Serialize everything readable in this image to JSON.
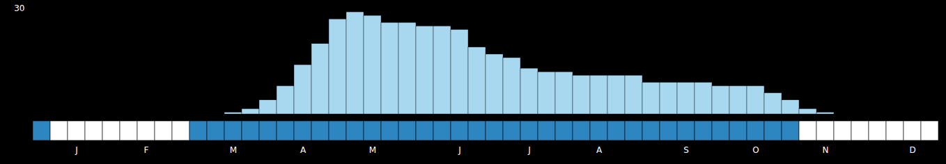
{
  "chart_data": [
    {
      "type": "bar",
      "categories": [
        null,
        null,
        "J",
        null,
        null,
        null,
        "F",
        null,
        null,
        null,
        null,
        "M",
        null,
        null,
        null,
        "A",
        null,
        null,
        null,
        "M",
        null,
        null,
        null,
        null,
        "J",
        null,
        null,
        null,
        "J",
        null,
        null,
        null,
        "A",
        null,
        null,
        null,
        null,
        "S",
        null,
        null,
        null,
        "O",
        null,
        null,
        null,
        "N",
        null,
        null,
        null,
        null,
        "D",
        null
      ],
      "values": [
        0.0,
        0.0,
        0.0,
        0.0,
        0.0,
        0.0,
        0.0,
        0.0,
        0.0,
        0.0,
        0.0,
        0.5,
        1.5,
        4.0,
        8.0,
        14.0,
        20.0,
        27.0,
        29.0,
        28.0,
        26.0,
        26.0,
        25.0,
        25.0,
        24.0,
        19.0,
        17.0,
        16.0,
        13.0,
        12.0,
        12.0,
        11.0,
        11.0,
        11.0,
        11.0,
        9.0,
        9.0,
        9.0,
        9.0,
        8.0,
        8.0,
        8.0,
        6.0,
        4.0,
        1.5,
        0.5,
        0.0,
        0.0,
        0.0,
        0.0,
        0.0,
        0.0
      ],
      "color": "#a8d8f0",
      "ylim": [
        0,
        30
      ],
      "yticks": [
        30
      ],
      "grid": false,
      "tick_labels": "y"
    },
    {
      "type": "strip",
      "categories": [
        null,
        null,
        "J",
        null,
        null,
        null,
        "F",
        null,
        null,
        null,
        null,
        "M",
        null,
        null,
        null,
        "A",
        null,
        null,
        null,
        "M",
        null,
        null,
        null,
        null,
        "J",
        null,
        null,
        null,
        "J",
        null,
        null,
        null,
        "A",
        null,
        null,
        null,
        null,
        "S",
        null,
        null,
        null,
        "O",
        null,
        null,
        null,
        "N",
        null,
        null,
        null,
        null,
        "D",
        null
      ],
      "colors": [
        "#2e86c1",
        "#ffffff",
        "#ffffff",
        "#ffffff",
        "#ffffff",
        "#ffffff",
        "#ffffff",
        "#ffffff",
        "#ffffff",
        "#2e86c1",
        "#2e86c1",
        "#2e86c1",
        "#2e86c1",
        "#2e86c1",
        "#2e86c1",
        "#2e86c1",
        "#2e86c1",
        "#2e86c1",
        "#2e86c1",
        "#2e86c1",
        "#2e86c1",
        "#2e86c1",
        "#2e86c1",
        "#2e86c1",
        "#2e86c1",
        "#2e86c1",
        "#2e86c1",
        "#2e86c1",
        "#2e86c1",
        "#2e86c1",
        "#2e86c1",
        "#2e86c1",
        "#2e86c1",
        "#2e86c1",
        "#2e86c1",
        "#2e86c1",
        "#2e86c1",
        "#2e86c1",
        "#2e86c1",
        "#2e86c1",
        "#2e86c1",
        "#2e86c1",
        "#2e86c1",
        "#2e86c1",
        "#ffffff",
        "#ffffff",
        "#ffffff",
        "#ffffff",
        "#ffffff",
        "#ffffff",
        "#ffffff",
        "#ffffff"
      ],
      "grid": false,
      "tick_labels": "x"
    }
  ]
}
